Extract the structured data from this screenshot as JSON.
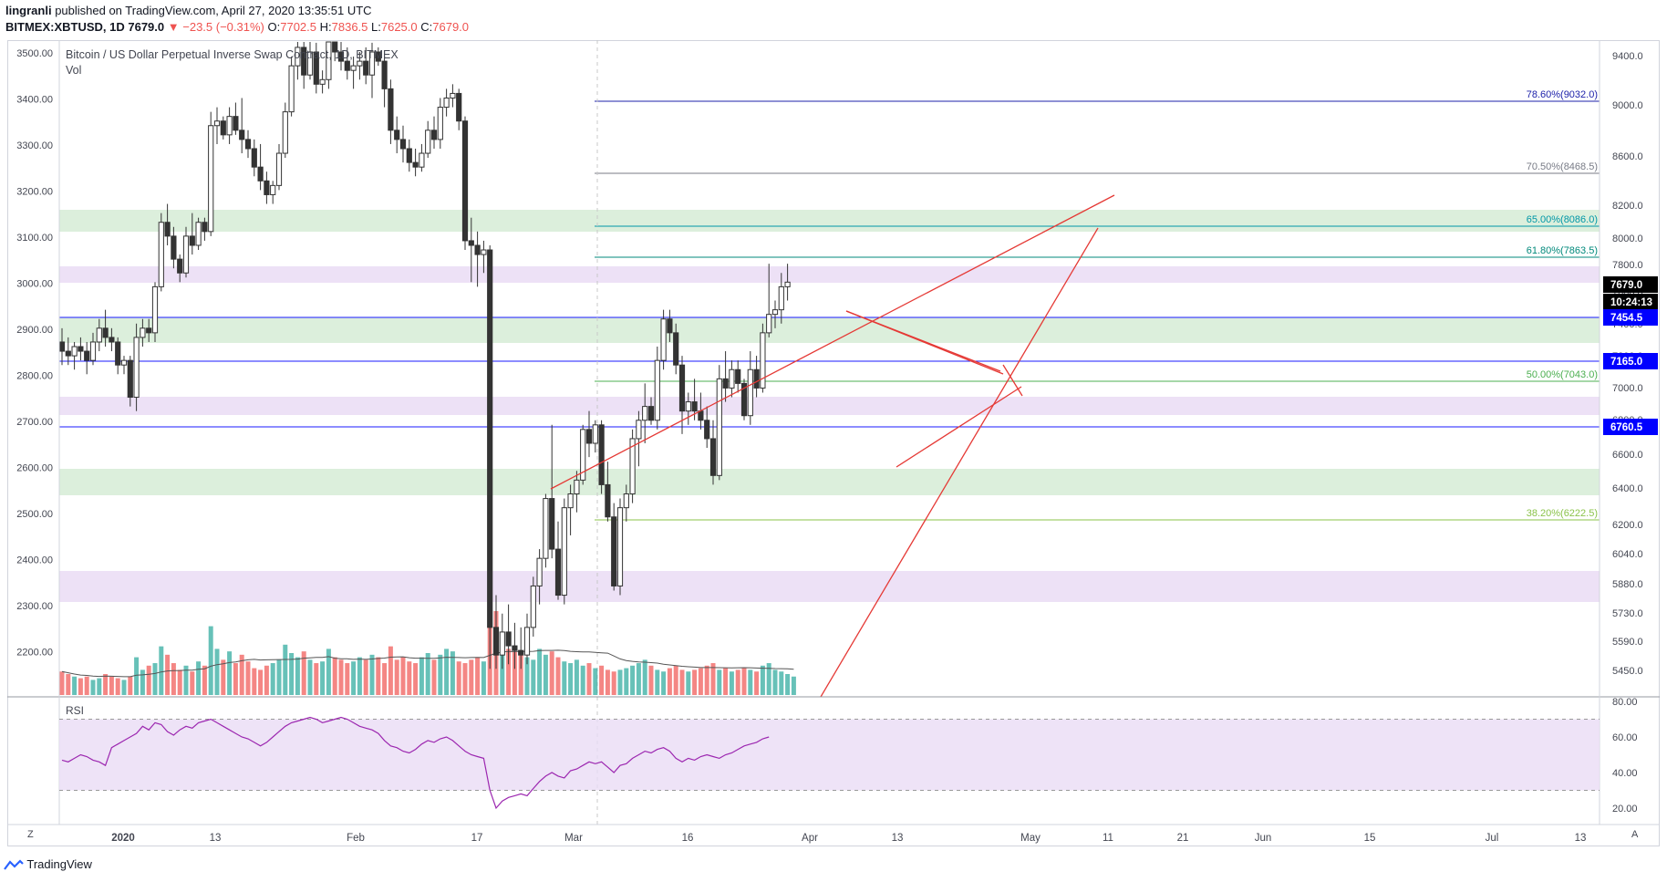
{
  "header": {
    "author": "lingranli",
    "published": "published on TradingView.com, April 27, 2020 13:35:51 UTC",
    "symbol": "BITMEX:XBTUSD, 1D",
    "last": "7679.0",
    "change": "−23.5 (−0.31%)",
    "o_label": "O:",
    "o": "7702.5",
    "h_label": "H:",
    "h": "7836.5",
    "l_label": "L:",
    "l": "7625.0",
    "c_label": "C:",
    "c": "7679.0"
  },
  "legend": {
    "title": "Bitcoin / US Dollar Perpetual Inverse Swap Contract, 1D, BITMEX",
    "vol": "Vol"
  },
  "rsi_label": "RSI",
  "footer": {
    "brand": "TradingView"
  },
  "corners": {
    "left": "Z",
    "right": "A"
  },
  "chart_data": {
    "type": "candlestick",
    "colors": {
      "up": "#ffffff",
      "down": "#333333",
      "vol_up": "#26a69a",
      "vol_down": "#ef5350",
      "fib": "#1e22aa",
      "trend": "#e53935",
      "rsi": "#9c27b0"
    },
    "left_axis": {
      "ticks": [
        "3500.00",
        "3400.00",
        "3300.00",
        "3200.00",
        "3100.00",
        "3000.00",
        "2900.00",
        "2800.00",
        "2700.00",
        "2600.00",
        "2500.00",
        "2400.00",
        "2300.00",
        "2200.00"
      ]
    },
    "right_axis": {
      "ticks": [
        "9400.0",
        "9000.0",
        "8600.0",
        "8200.0",
        "8000.0",
        "7800.0",
        "7600.0",
        "7400.0",
        "7200.0",
        "7000.0",
        "6800.0",
        "6600.0",
        "6400.0",
        "6200.0",
        "6040.0",
        "5880.0",
        "5730.0",
        "5590.0",
        "5450.0"
      ]
    },
    "rsi_axis": {
      "ticks": [
        "80.00",
        "60.00",
        "40.00",
        "20.00"
      ]
    },
    "x_axis": {
      "ticks": [
        "2020",
        "13",
        "Feb",
        "17",
        "Mar",
        "16",
        "Apr",
        "13",
        "May",
        "11",
        "21",
        "Jun",
        "15",
        "Jul",
        "13"
      ]
    },
    "price_tags": [
      {
        "label": "7679.0",
        "color": "#000000",
        "text": "#ffffff"
      },
      {
        "label": "10:24:13",
        "color": "#000000",
        "text": "#ffffff"
      },
      {
        "label": "7454.5",
        "color": "#0000ff",
        "text": "#ffffff"
      },
      {
        "label": "7165.0",
        "color": "#0000ff",
        "text": "#ffffff"
      },
      {
        "label": "6760.5",
        "color": "#0000ff",
        "text": "#ffffff"
      }
    ],
    "fib_levels": [
      {
        "label": "78.60%(9032.0)",
        "color": "#1e22aa"
      },
      {
        "label": "70.50%(8468.5)",
        "color": "#787b86"
      },
      {
        "label": "65.00%(8086.0)",
        "color": "#0097a7"
      },
      {
        "label": "61.80%(7863.5)",
        "color": "#00897b"
      },
      {
        "label": "50.00%(7043.0)",
        "color": "#4caf50"
      },
      {
        "label": "38.20%(6222.5)",
        "color": "#8bc34a"
      }
    ],
    "candles": [
      [
        2870,
        2900,
        2820,
        2850
      ],
      [
        2850,
        2880,
        2820,
        2840
      ],
      [
        2840,
        2870,
        2810,
        2860
      ],
      [
        2860,
        2880,
        2830,
        2850
      ],
      [
        2850,
        2870,
        2800,
        2830
      ],
      [
        2830,
        2890,
        2820,
        2870
      ],
      [
        2870,
        2920,
        2850,
        2900
      ],
      [
        2900,
        2940,
        2860,
        2880
      ],
      [
        2880,
        2900,
        2850,
        2870
      ],
      [
        2870,
        2880,
        2800,
        2820
      ],
      [
        2820,
        2840,
        2800,
        2830
      ],
      [
        2830,
        2840,
        2730,
        2750
      ],
      [
        2750,
        2910,
        2720,
        2880
      ],
      [
        2880,
        2920,
        2860,
        2900
      ],
      [
        2900,
        2920,
        2870,
        2890
      ],
      [
        2890,
        3000,
        2870,
        2990
      ],
      [
        2990,
        3150,
        2980,
        3130
      ],
      [
        3130,
        3170,
        3080,
        3100
      ],
      [
        3100,
        3120,
        3030,
        3050
      ],
      [
        3050,
        3060,
        3000,
        3020
      ],
      [
        3020,
        3120,
        3010,
        3100
      ],
      [
        3100,
        3150,
        3060,
        3080
      ],
      [
        3080,
        3140,
        3070,
        3130
      ],
      [
        3130,
        3140,
        3090,
        3110
      ],
      [
        3110,
        3370,
        3100,
        3340
      ],
      [
        3340,
        3380,
        3300,
        3350
      ],
      [
        3350,
        3360,
        3310,
        3320
      ],
      [
        3320,
        3380,
        3300,
        3360
      ],
      [
        3360,
        3390,
        3320,
        3330
      ],
      [
        3330,
        3400,
        3280,
        3310
      ],
      [
        3310,
        3330,
        3270,
        3290
      ],
      [
        3290,
        3310,
        3230,
        3250
      ],
      [
        3250,
        3300,
        3200,
        3220
      ],
      [
        3220,
        3240,
        3170,
        3190
      ],
      [
        3190,
        3220,
        3170,
        3210
      ],
      [
        3210,
        3300,
        3200,
        3280
      ],
      [
        3280,
        3390,
        3270,
        3370
      ],
      [
        3370,
        3490,
        3360,
        3470
      ],
      [
        3470,
        3530,
        3440,
        3510
      ],
      [
        3510,
        3540,
        3420,
        3450
      ],
      [
        3450,
        3530,
        3440,
        3500
      ],
      [
        3500,
        3520,
        3410,
        3430
      ],
      [
        3430,
        3460,
        3410,
        3440
      ],
      [
        3440,
        3560,
        3420,
        3540
      ],
      [
        3540,
        3560,
        3480,
        3500
      ],
      [
        3500,
        3530,
        3460,
        3480
      ],
      [
        3480,
        3510,
        3440,
        3460
      ],
      [
        3460,
        3490,
        3420,
        3470
      ],
      [
        3470,
        3500,
        3440,
        3480
      ],
      [
        3480,
        3510,
        3430,
        3450
      ],
      [
        3450,
        3520,
        3400,
        3500
      ],
      [
        3500,
        3510,
        3470,
        3480
      ],
      [
        3480,
        3490,
        3380,
        3420
      ],
      [
        3420,
        3440,
        3300,
        3330
      ],
      [
        3330,
        3360,
        3280,
        3310
      ],
      [
        3310,
        3340,
        3260,
        3290
      ],
      [
        3290,
        3310,
        3240,
        3260
      ],
      [
        3260,
        3290,
        3230,
        3250
      ],
      [
        3250,
        3300,
        3240,
        3280
      ],
      [
        3280,
        3350,
        3270,
        3330
      ],
      [
        3330,
        3360,
        3290,
        3310
      ],
      [
        3310,
        3400,
        3290,
        3380
      ],
      [
        3380,
        3420,
        3360,
        3400
      ],
      [
        3400,
        3430,
        3380,
        3410
      ],
      [
        3410,
        3420,
        3330,
        3350
      ],
      [
        3350,
        3360,
        3070,
        3090
      ],
      [
        3090,
        3140,
        3000,
        3080
      ],
      [
        3080,
        3110,
        2990,
        3060
      ],
      [
        3060,
        3090,
        3020,
        3070
      ],
      [
        3070,
        3080,
        2160,
        2250
      ],
      [
        2250,
        2320,
        2160,
        2190
      ],
      [
        2190,
        2280,
        2160,
        2240
      ],
      [
        2240,
        2300,
        2170,
        2210
      ],
      [
        2210,
        2260,
        2160,
        2200
      ],
      [
        2200,
        2250,
        2160,
        2190
      ],
      [
        2190,
        2280,
        2170,
        2250
      ],
      [
        2250,
        2360,
        2230,
        2340
      ],
      [
        2340,
        2420,
        2300,
        2400
      ],
      [
        2400,
        2540,
        2380,
        2530
      ],
      [
        2530,
        2690,
        2400,
        2420
      ],
      [
        2420,
        2480,
        2310,
        2320
      ],
      [
        2320,
        2530,
        2300,
        2510
      ],
      [
        2510,
        2560,
        2450,
        2540
      ],
      [
        2540,
        2590,
        2500,
        2570
      ],
      [
        2570,
        2690,
        2560,
        2680
      ],
      [
        2680,
        2720,
        2620,
        2650
      ],
      [
        2650,
        2700,
        2630,
        2690
      ],
      [
        2690,
        2700,
        2540,
        2560
      ],
      [
        2560,
        2610,
        2480,
        2490
      ],
      [
        2490,
        2520,
        2330,
        2340
      ],
      [
        2340,
        2530,
        2320,
        2510
      ],
      [
        2510,
        2560,
        2480,
        2540
      ],
      [
        2540,
        2680,
        2520,
        2660
      ],
      [
        2660,
        2720,
        2600,
        2700
      ],
      [
        2700,
        2780,
        2650,
        2730
      ],
      [
        2730,
        2750,
        2690,
        2700
      ],
      [
        2700,
        2860,
        2680,
        2830
      ],
      [
        2830,
        2940,
        2810,
        2920
      ],
      [
        2920,
        2940,
        2870,
        2890
      ],
      [
        2890,
        2910,
        2800,
        2820
      ],
      [
        2820,
        2840,
        2670,
        2720
      ],
      [
        2720,
        2760,
        2690,
        2740
      ],
      [
        2740,
        2790,
        2700,
        2720
      ],
      [
        2720,
        2760,
        2680,
        2700
      ],
      [
        2700,
        2730,
        2640,
        2660
      ],
      [
        2660,
        2700,
        2560,
        2580
      ],
      [
        2580,
        2820,
        2570,
        2790
      ],
      [
        2790,
        2850,
        2740,
        2770
      ],
      [
        2770,
        2830,
        2750,
        2810
      ],
      [
        2810,
        2830,
        2760,
        2780
      ],
      [
        2780,
        2790,
        2700,
        2710
      ],
      [
        2710,
        2850,
        2690,
        2810
      ],
      [
        2810,
        2840,
        2750,
        2770
      ],
      [
        2770,
        2910,
        2760,
        2890
      ],
      [
        2890,
        3040,
        2880,
        2930
      ],
      [
        2930,
        2960,
        2900,
        2940
      ],
      [
        2940,
        3020,
        2910,
        2990
      ],
      [
        2990,
        3040,
        2960,
        3000
      ]
    ],
    "volumes": [
      0.28,
      0.25,
      0.22,
      0.2,
      0.22,
      0.18,
      0.2,
      0.25,
      0.22,
      0.2,
      0.18,
      0.22,
      0.45,
      0.3,
      0.35,
      0.38,
      0.58,
      0.48,
      0.38,
      0.3,
      0.35,
      0.28,
      0.4,
      0.35,
      0.82,
      0.55,
      0.42,
      0.52,
      0.38,
      0.48,
      0.4,
      0.32,
      0.3,
      0.35,
      0.38,
      0.42,
      0.6,
      0.5,
      0.45,
      0.52,
      0.42,
      0.38,
      0.4,
      0.55,
      0.45,
      0.42,
      0.38,
      0.4,
      0.45,
      0.42,
      0.48,
      0.45,
      0.38,
      0.58,
      0.42,
      0.45,
      0.4,
      0.38,
      0.45,
      0.5,
      0.42,
      0.48,
      0.55,
      0.52,
      0.4,
      0.38,
      0.42,
      0.45,
      0.4,
      0.95,
      1.0,
      0.7,
      0.55,
      0.52,
      0.48,
      0.45,
      0.42,
      0.55,
      0.48,
      0.52,
      0.45,
      0.4,
      0.38,
      0.42,
      0.35,
      0.38,
      0.32,
      0.35,
      0.3,
      0.28,
      0.3,
      0.32,
      0.35,
      0.38,
      0.42,
      0.35,
      0.3,
      0.28,
      0.32,
      0.35,
      0.3,
      0.28,
      0.3,
      0.32,
      0.35,
      0.38,
      0.3,
      0.32,
      0.28,
      0.3,
      0.32,
      0.3,
      0.28,
      0.35,
      0.38,
      0.3,
      0.28,
      0.25,
      0.22
    ],
    "rsi": [
      47,
      46,
      48,
      50,
      49,
      47,
      46,
      44,
      54,
      56,
      58,
      60,
      62,
      66,
      64,
      68,
      67,
      63,
      61,
      64,
      66,
      65,
      68,
      69,
      70,
      68,
      66,
      64,
      62,
      60,
      59,
      57,
      55,
      57,
      60,
      63,
      66,
      68,
      69,
      70,
      71,
      70,
      68,
      69,
      70,
      71,
      70,
      68,
      66,
      65,
      64,
      62,
      58,
      55,
      54,
      52,
      51,
      53,
      56,
      58,
      57,
      59,
      60,
      58,
      55,
      52,
      50,
      49,
      48,
      30,
      20,
      24,
      26,
      27,
      28,
      27,
      31,
      35,
      38,
      40,
      38,
      37,
      41,
      42,
      44,
      46,
      45,
      46,
      43,
      40,
      44,
      45,
      48,
      50,
      52,
      51,
      53,
      54,
      52,
      48,
      46,
      48,
      47,
      49,
      50,
      49,
      48,
      50,
      51,
      53,
      55,
      56,
      57,
      59,
      60
    ]
  }
}
